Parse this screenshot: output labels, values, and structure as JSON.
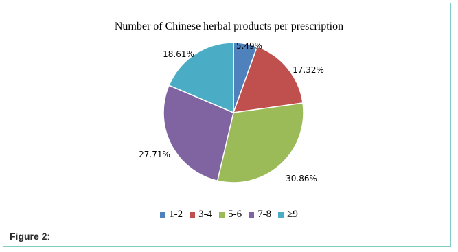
{
  "caption": {
    "label": "Figure 2",
    "suffix": ":"
  },
  "chart_data": {
    "type": "pie",
    "title": "Number of Chinese herbal products per prescription",
    "categories": [
      "1-2",
      "3-4",
      "5-6",
      "7-8",
      "≥9"
    ],
    "values": [
      5.49,
      17.32,
      30.86,
      27.71,
      18.61
    ],
    "data_labels": [
      "5.49%",
      "17.32%",
      "30.86%",
      "27.71%",
      "18.61%"
    ],
    "colors": [
      "#4f81bd",
      "#c0504d",
      "#9bbb59",
      "#8064a2",
      "#4bacc6"
    ],
    "legend_position": "bottom",
    "start": "12 o'clock, clockwise"
  }
}
